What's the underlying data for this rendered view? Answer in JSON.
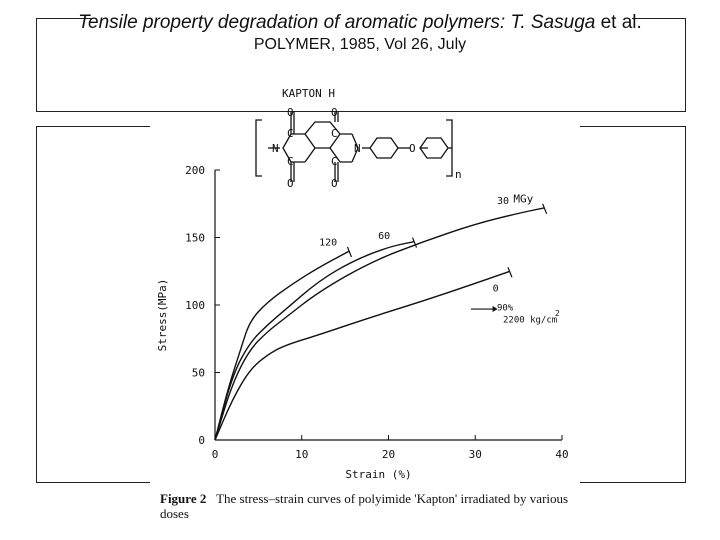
{
  "header": {
    "title_italic": "Tensile property degradation of aromatic polymers: T. Sasuga",
    "title_suffix": " et al.",
    "journal": "POLYMER, 1985, Vol 26, July"
  },
  "structure": {
    "label": "KAPTON H",
    "repeat_subscript": "n"
  },
  "figure": {
    "number": "Figure 2",
    "caption": "The stress–strain curves of polyimide 'Kapton' irradiated by various doses"
  },
  "chart_data": {
    "type": "line",
    "xlabel": "Strain (%)",
    "ylabel": "Stress(MPa)",
    "xlim": [
      0,
      40
    ],
    "ylim": [
      0,
      200
    ],
    "xticks": [
      "0",
      "10",
      "20",
      "30",
      "40"
    ],
    "yticks": [
      "0",
      "50",
      "100",
      "150",
      "200"
    ],
    "series": [
      {
        "name": "0",
        "x": [
          0,
          2,
          4,
          6,
          8,
          12,
          18,
          24,
          30,
          34
        ],
        "y": [
          0,
          30,
          52,
          63,
          70,
          78,
          91,
          103,
          116,
          125
        ]
      },
      {
        "name": "30 MGy",
        "x": [
          0,
          2,
          4,
          6,
          8,
          12,
          18,
          24,
          30,
          35,
          38
        ],
        "y": [
          0,
          42,
          67,
          80,
          90,
          110,
          132,
          147,
          160,
          168,
          172
        ]
      },
      {
        "name": "60",
        "x": [
          0,
          2,
          4,
          6,
          8,
          12,
          16,
          20,
          23
        ],
        "y": [
          0,
          48,
          72,
          85,
          96,
          118,
          133,
          143,
          147
        ]
      },
      {
        "name": "120",
        "x": [
          0,
          1.5,
          3,
          4,
          6,
          9,
          12,
          15.5
        ],
        "y": [
          0,
          38,
          68,
          88,
          102,
          116,
          128,
          140
        ]
      }
    ],
    "annotations": {
      "dose_unit": "MGy",
      "dose_30": "30",
      "dose_60": "60",
      "dose_120": "120",
      "dose_0": "0",
      "temp": "90%",
      "pressure": "2200 kg/cm",
      "pressure_exp": "2"
    },
    "grid": false
  }
}
